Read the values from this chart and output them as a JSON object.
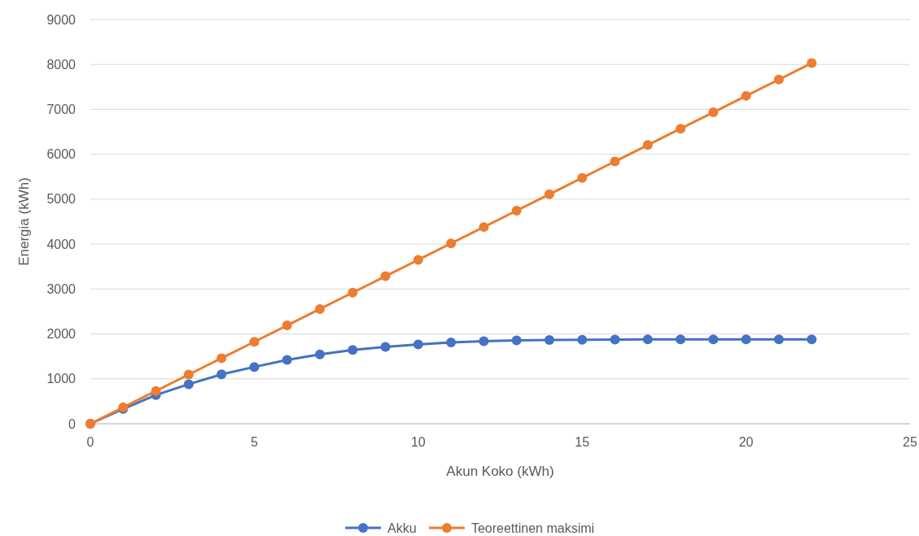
{
  "chart_data": {
    "type": "line",
    "xlabel": "Akun Koko (kWh)",
    "ylabel": "Energia (kWh)",
    "x": [
      0,
      1,
      2,
      3,
      4,
      5,
      6,
      7,
      8,
      9,
      10,
      11,
      12,
      13,
      14,
      15,
      16,
      17,
      18,
      19,
      20,
      21,
      22
    ],
    "series": [
      {
        "name": "Akku",
        "color": "#4472c4",
        "values": [
          0,
          330,
          640,
          880,
          1100,
          1265,
          1420,
          1545,
          1645,
          1710,
          1765,
          1810,
          1840,
          1855,
          1865,
          1870,
          1875,
          1878,
          1880,
          1880,
          1880,
          1880,
          1880
        ]
      },
      {
        "name": "Teoreettinen maksimi",
        "color": "#ed7d31",
        "values": [
          0,
          365,
          730,
          1095,
          1460,
          1825,
          2190,
          2555,
          2920,
          3285,
          3650,
          4015,
          4380,
          4745,
          5110,
          5475,
          5840,
          6205,
          6570,
          6935,
          7300,
          7665,
          8030
        ]
      }
    ],
    "xlim": [
      0,
      25
    ],
    "xticks": [
      0,
      5,
      10,
      15,
      20,
      25
    ],
    "ylim": [
      0,
      9000
    ],
    "yticks": [
      0,
      1000,
      2000,
      3000,
      4000,
      5000,
      6000,
      7000,
      8000,
      9000
    ],
    "grid": "y",
    "legend": "bottom",
    "marker": "circle",
    "line_style": "solid"
  }
}
